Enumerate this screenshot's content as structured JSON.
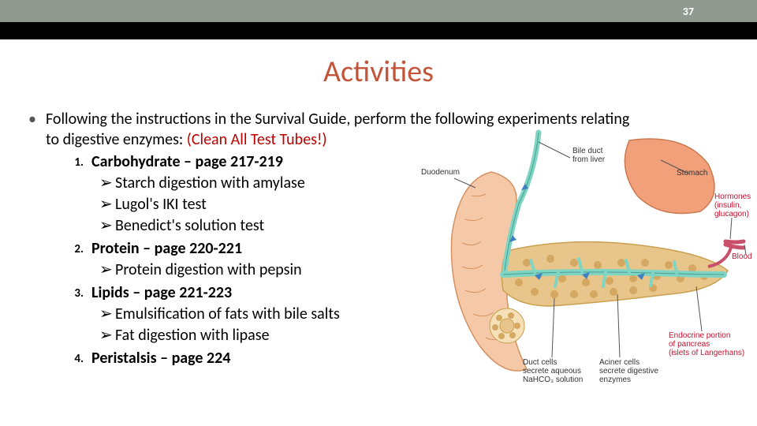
{
  "header": {
    "page_number": "37"
  },
  "title": "Activities",
  "intro": {
    "line1": "Following the instructions in the Survival Guide, perform the following experiments relating",
    "line2a": "to digestive enzymes:  ",
    "line2b": "(Clean All Test Tubes!)"
  },
  "items": [
    {
      "num": "1.",
      "title": "Carbohydrate – page 217-219",
      "subs": [
        "Starch digestion with amylase",
        "Lugol's IKI test",
        "Benedict's solution test"
      ]
    },
    {
      "num": "2.",
      "title": "Protein – page 220-221",
      "subs": [
        "Protein digestion with pepsin"
      ]
    },
    {
      "num": "3.",
      "title": "Lipids – page 221-223",
      "subs": [
        "Emulsification of fats with bile salts",
        "Fat digestion with lipase"
      ]
    },
    {
      "num": "4.",
      "title": "Peristalsis – page 224",
      "subs": []
    }
  ],
  "diagram": {
    "labels": {
      "bile_duct": "Bile duct\nfrom liver",
      "stomach": "Stomach",
      "duodenum": "Duodenum",
      "hormones": "Hormones\n(insulin,\nglucagon)",
      "blood": "Blood",
      "duct_cells": "Duct cells\nsecrete aqueous\nNaHCO₃ solution",
      "aciner_cells": "Aciner cells\nsecrete digestive\nenzymes",
      "endocrine": "Endocrine portion\nof pancreas\n(islets of Langerhans)"
    },
    "colors": {
      "duodenum_fill": "#f5c9a8",
      "duodenum_stroke": "#d49060",
      "stomach_fill": "#f2a07a",
      "stomach_stroke": "#c97850",
      "pancreas_fill": "#e8c58a",
      "pancreas_stroke": "#c9a050",
      "pancreas_texture": "#d4a860",
      "duct_fill": "#7fd4c4",
      "duct_stroke": "#4aa090",
      "blood_vessel": "#c8506a",
      "leader": "#555555",
      "arrow": "#4080c0"
    }
  }
}
